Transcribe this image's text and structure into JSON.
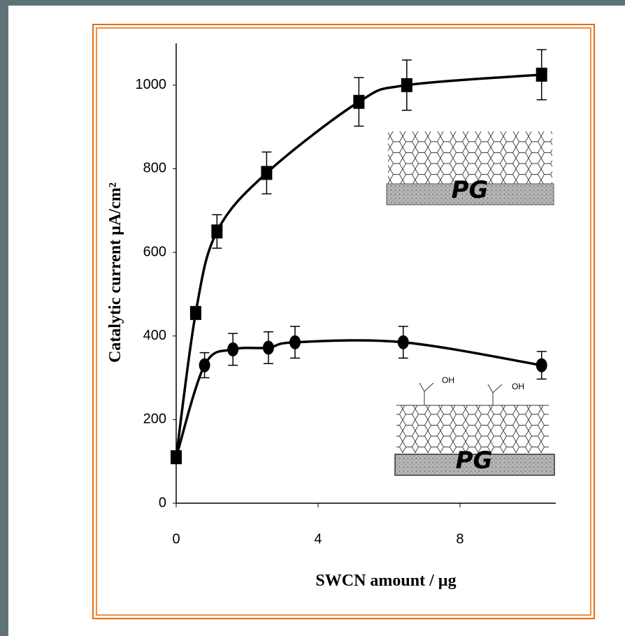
{
  "chart_data": {
    "type": "line",
    "x_label": "SWCN amount / µg",
    "y_label": "Catalytic current µA/cm²",
    "xlim": [
      0,
      10.7
    ],
    "xticks": [
      0,
      4,
      8
    ],
    "ylim": [
      0,
      1100
    ],
    "yticks": [
      0,
      200,
      400,
      600,
      800,
      1000
    ],
    "series": [
      {
        "color": "#000000",
        "marker": "square",
        "x": [
          0,
          0.55,
          1.15,
          2.55,
          5.15,
          6.5,
          10.3
        ],
        "values": [
          110,
          455,
          650,
          790,
          960,
          1000,
          1025
        ],
        "errors": [
          10,
          15,
          40,
          50,
          58,
          60,
          60
        ]
      },
      {
        "color": "#000000",
        "marker": "circle",
        "x": [
          0,
          0.8,
          1.6,
          2.6,
          3.35,
          6.4,
          10.3
        ],
        "values": [
          110,
          330,
          368,
          372,
          385,
          385,
          330
        ],
        "errors": [
          10,
          30,
          38,
          38,
          38,
          38,
          33
        ]
      }
    ],
    "annotations": [
      "PG",
      "PG",
      "OH",
      "OH"
    ]
  }
}
